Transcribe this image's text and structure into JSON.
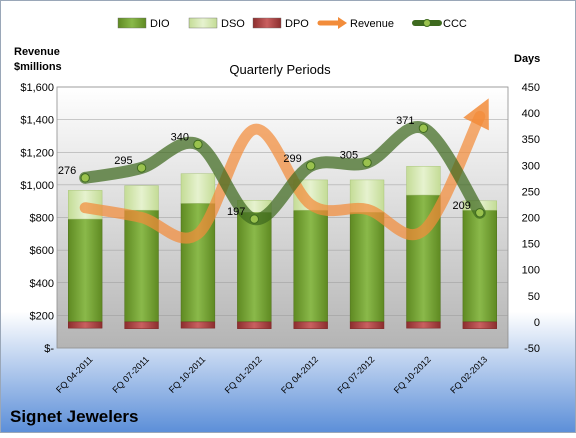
{
  "chart_data": {
    "type": "bar",
    "title": "Quarterly Periods",
    "company": "Signet Jewelers",
    "categories": [
      "FQ 04-2011",
      "FQ 07-2011",
      "FQ 10-2011",
      "FQ 01-2012",
      "FQ 04-2012",
      "FQ 07-2012",
      "FQ 10-2012",
      "FQ 02-2013"
    ],
    "left_axis": {
      "label_line1": "Revenue",
      "label_line2": "$millions",
      "ylim": [
        0,
        1600
      ],
      "ticks": [
        0,
        200,
        400,
        600,
        800,
        1000,
        1200,
        1400,
        1600
      ],
      "tick_labels": [
        "$-",
        "$200",
        "$400",
        "$600",
        "$800",
        "$1,000",
        "$1,200",
        "$1,400",
        "$1,600"
      ]
    },
    "right_axis": {
      "label": "Days",
      "ylim": [
        -50,
        450
      ],
      "ticks": [
        -50,
        0,
        50,
        100,
        150,
        200,
        250,
        300,
        350,
        400,
        450
      ],
      "tick_labels": [
        "-50",
        "0",
        "50",
        "100",
        "150",
        "200",
        "250",
        "300",
        "350",
        "400",
        "450"
      ]
    },
    "legend": {
      "position": "top",
      "items": [
        {
          "name": "DIO",
          "color": "#7aa235"
        },
        {
          "name": "DSO",
          "color": "#d6e8b0"
        },
        {
          "name": "DPO",
          "color": "#b84c4c"
        },
        {
          "name": "Revenue",
          "color": "#f28c3a"
        },
        {
          "name": "CCC",
          "color": "#3e6a1f"
        }
      ]
    },
    "series": [
      {
        "name": "DIO",
        "axis": "right",
        "values": [
          197,
          214,
          227,
          210,
          214,
          210,
          243,
          214
        ]
      },
      {
        "name": "DSO",
        "axis": "right",
        "values": [
          55,
          47,
          57,
          23,
          58,
          62,
          55,
          18
        ]
      },
      {
        "name": "DPO",
        "axis": "right",
        "values": [
          -12,
          -13,
          -12,
          -13,
          -13,
          -13,
          -12,
          -13
        ]
      },
      {
        "name": "Revenue",
        "axis": "left",
        "values": [
          860,
          800,
          700,
          1340,
          880,
          850,
          720,
          1420
        ]
      },
      {
        "name": "CCC",
        "axis": "right",
        "values": [
          276,
          295,
          340,
          197,
          299,
          305,
          371,
          209
        ],
        "labels": [
          "276",
          "295",
          "340",
          "197",
          "299",
          "305",
          "371",
          "209"
        ]
      }
    ],
    "grid": true
  }
}
